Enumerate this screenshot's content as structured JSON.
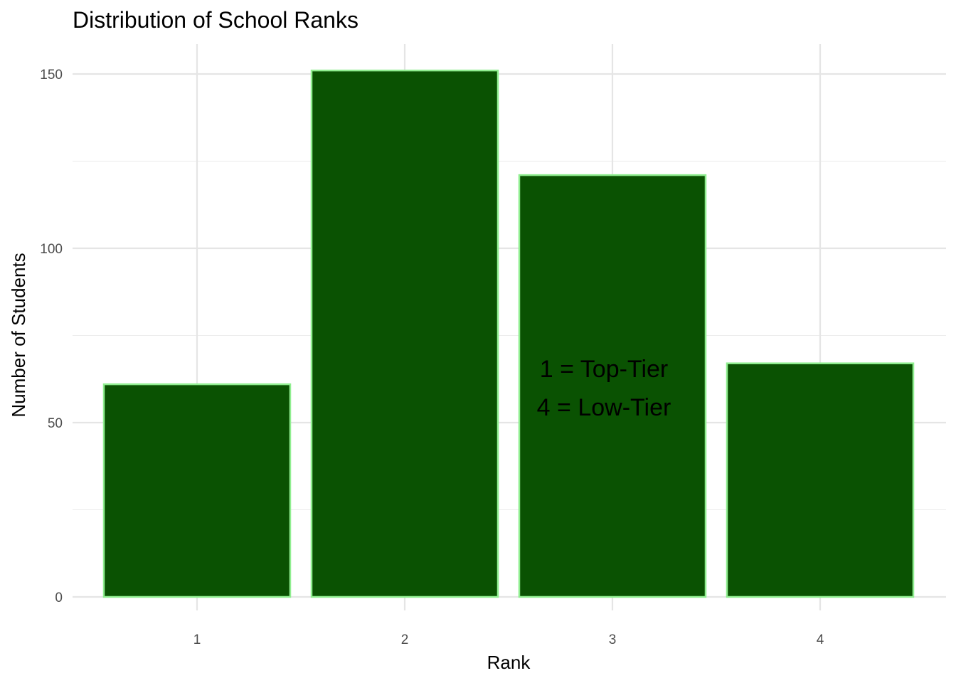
{
  "chart_data": {
    "type": "bar",
    "title": "Distribution of School Ranks",
    "xlabel": "Rank",
    "ylabel": "Number of Students",
    "categories": [
      "1",
      "2",
      "3",
      "4"
    ],
    "values": [
      61,
      151,
      121,
      67
    ],
    "ylim": [
      0,
      150
    ],
    "yticks": [
      0,
      50,
      100,
      150
    ],
    "grid": true,
    "legend": "none",
    "bar_fill": "#0a5202",
    "bar_outline": "#90ee90",
    "annotation": [
      "1 = Top-Tier",
      "4 = Low-Tier"
    ],
    "annotation_anchor": {
      "x": "3",
      "y": 60
    }
  }
}
